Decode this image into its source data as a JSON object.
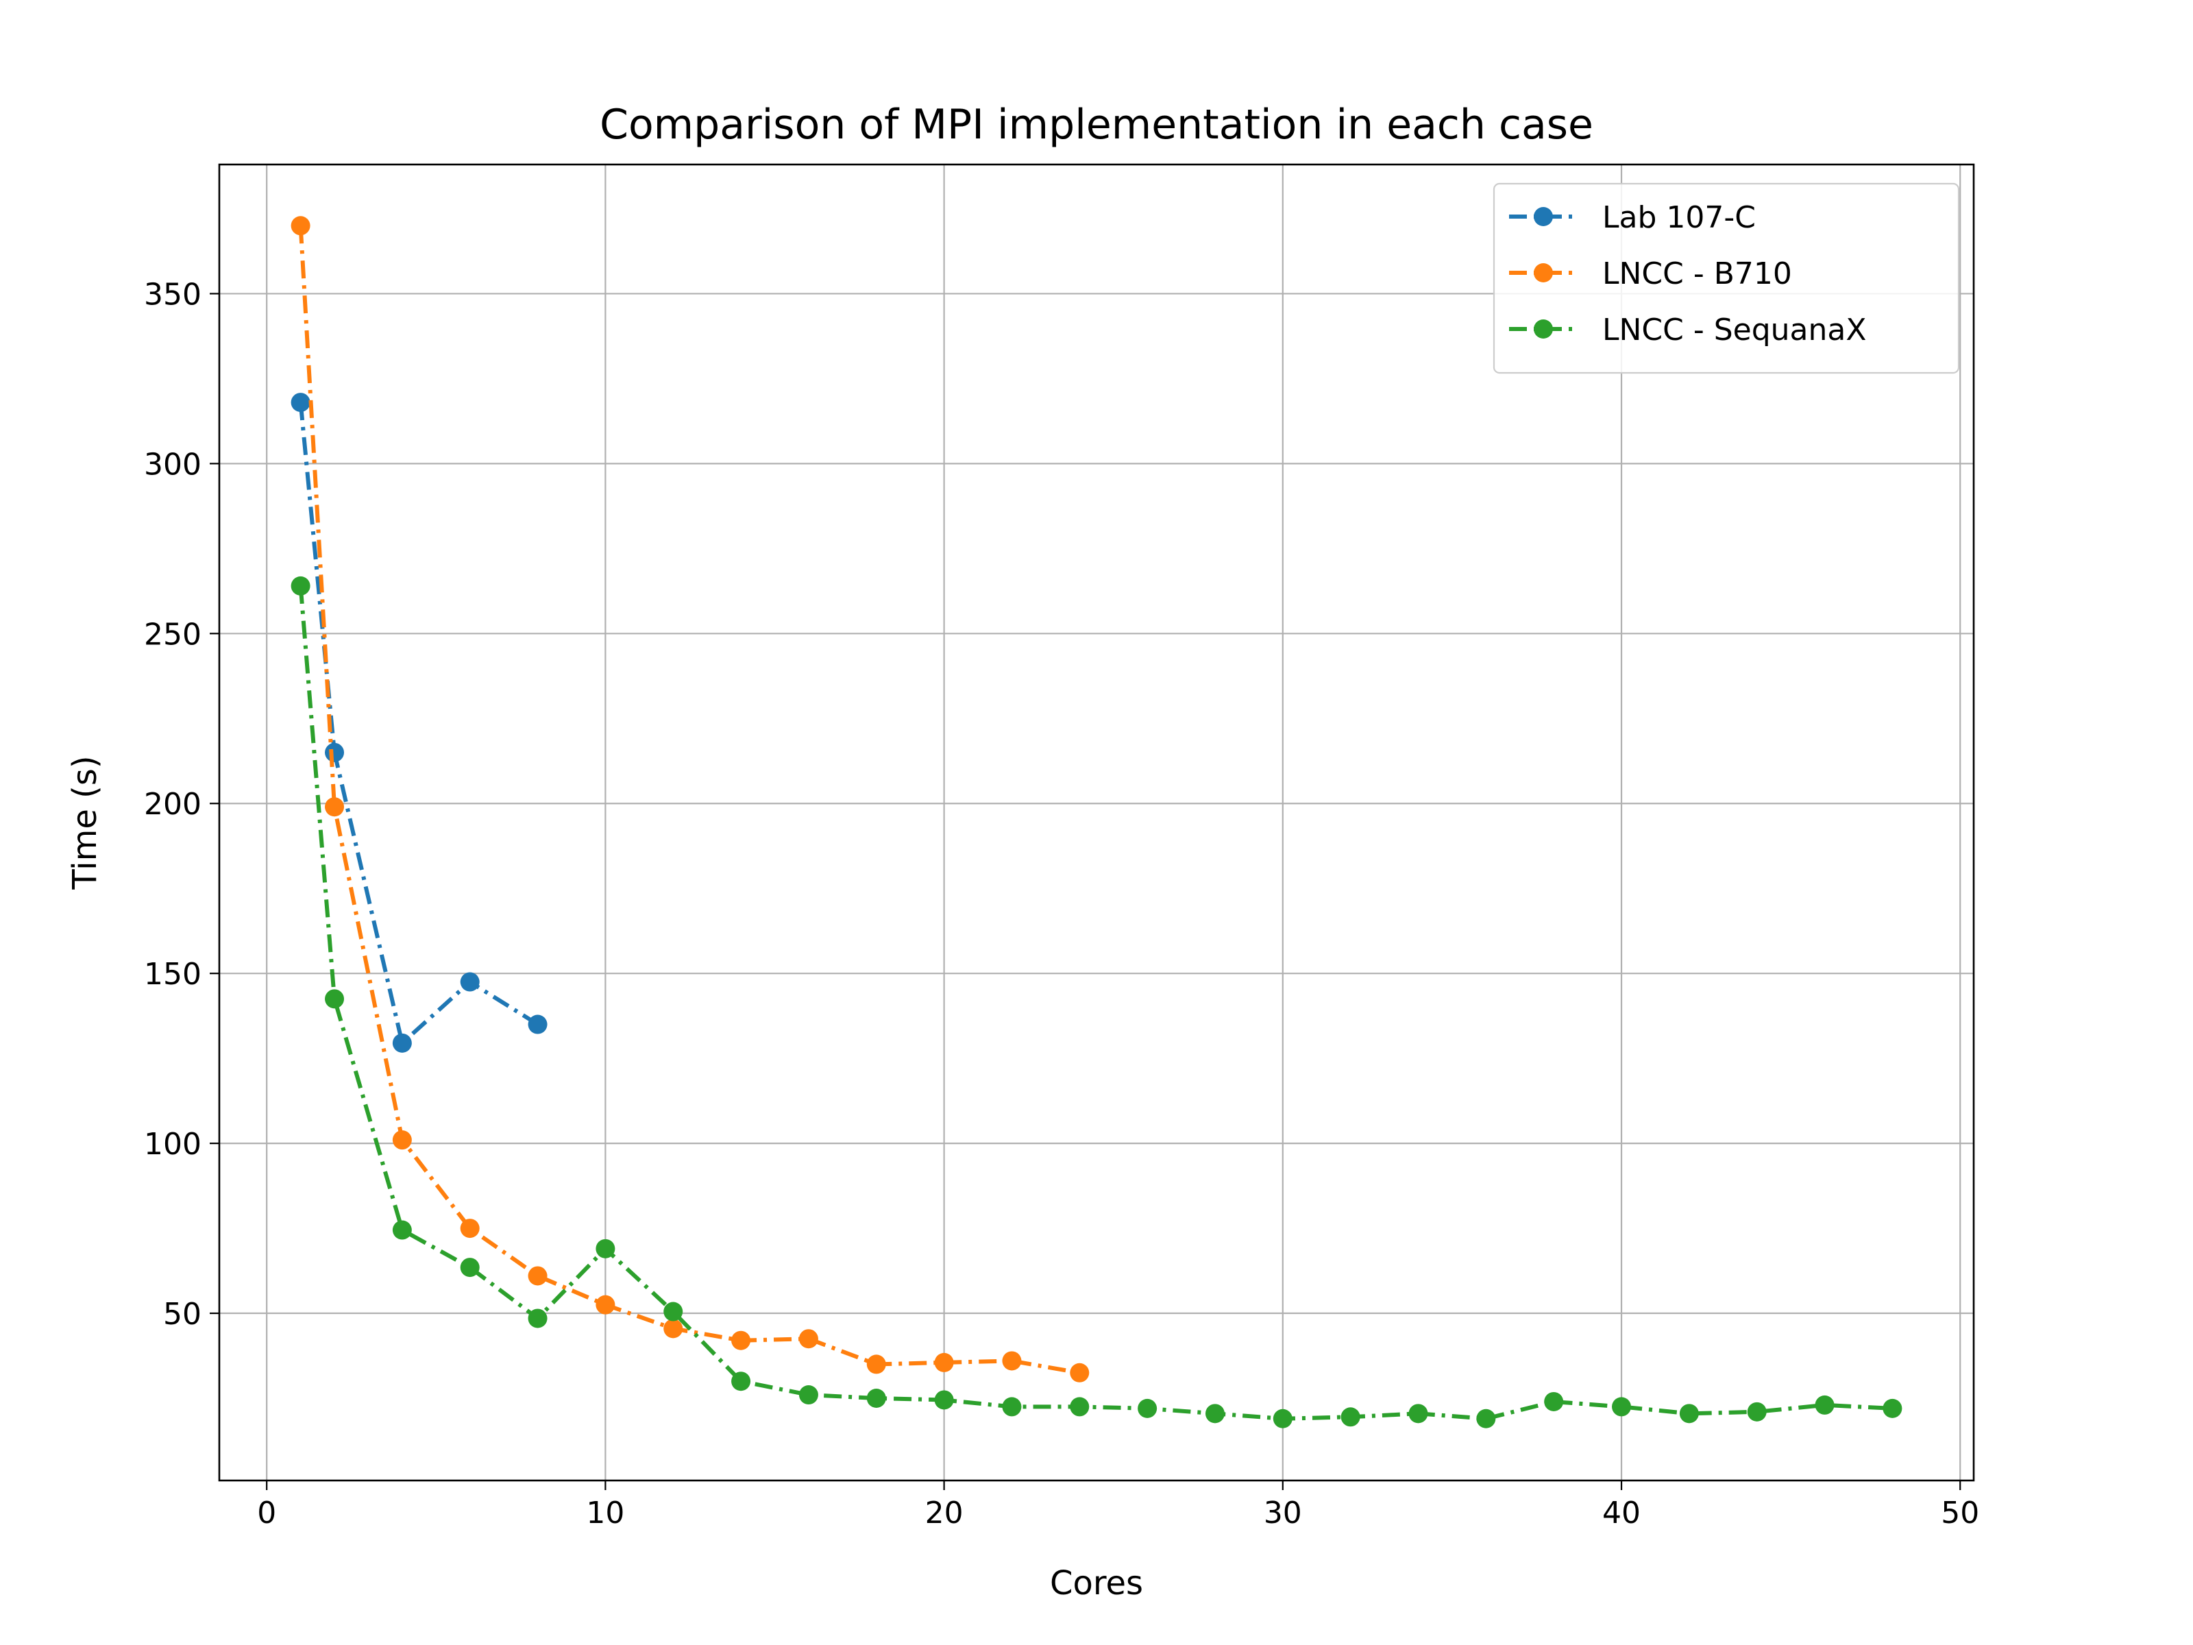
{
  "chart_data": {
    "type": "line",
    "title": "Comparison of MPI implementation in each case",
    "xlabel": "Cores",
    "ylabel": "Time (s)",
    "xlim": [
      -1.4,
      50.4
    ],
    "ylim": [
      0.8,
      388
    ],
    "xticks": [
      0,
      10,
      20,
      30,
      40,
      50
    ],
    "yticks": [
      50,
      100,
      150,
      200,
      250,
      300,
      350
    ],
    "grid": true,
    "legend_position": "top-right",
    "series": [
      {
        "name": "Lab 107-C",
        "color": "#1f77b4",
        "x": [
          1,
          2,
          4,
          6,
          8
        ],
        "y": [
          318,
          215,
          129.5,
          147.5,
          135
        ]
      },
      {
        "name": "LNCC - B710",
        "color": "#ff7f0e",
        "x": [
          1,
          2,
          4,
          6,
          8,
          10,
          12,
          14,
          16,
          18,
          20,
          22,
          24
        ],
        "y": [
          370,
          199,
          101,
          75,
          61,
          52.5,
          45.5,
          42,
          42.5,
          35,
          35.5,
          36,
          32.5
        ]
      },
      {
        "name": "LNCC - SequanaX",
        "color": "#2ca02c",
        "x": [
          1,
          2,
          4,
          6,
          8,
          10,
          12,
          14,
          16,
          18,
          20,
          22,
          24,
          26,
          28,
          30,
          32,
          34,
          36,
          38,
          40,
          42,
          44,
          46,
          48
        ],
        "y": [
          264,
          142.5,
          74.5,
          63.5,
          48.5,
          69,
          50.5,
          30,
          26,
          25,
          24.5,
          22.5,
          22.5,
          22,
          20.5,
          19,
          19.5,
          20.5,
          19,
          24,
          22.5,
          20.5,
          21,
          23,
          22
        ]
      }
    ]
  }
}
